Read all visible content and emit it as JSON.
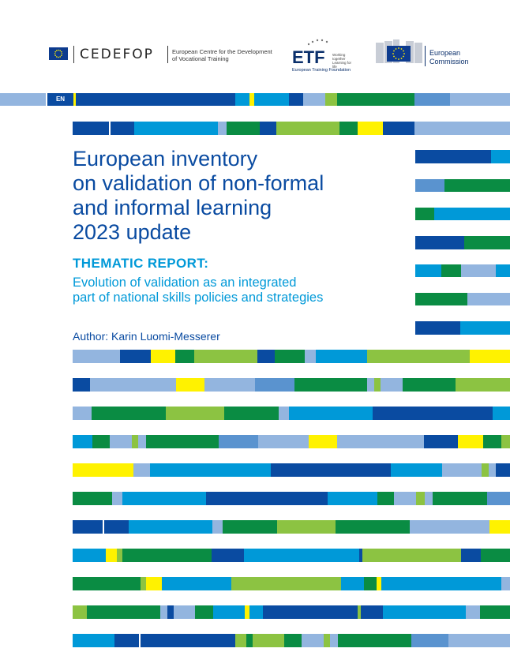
{
  "header": {
    "cedefop_name": "CEDEFOP",
    "cedefop_desc_line1": "European Centre for the Development",
    "cedefop_desc_line2": "of Vocational Training",
    "etf_name": "ETF",
    "etf_tagline_line1": "Working together",
    "etf_tagline_line2": "Learning for life",
    "etf_full": "European Training Foundation",
    "ec_line1": "European",
    "ec_line2": "Commission",
    "flag_icon": "eu-flag-icon"
  },
  "language_badge": "EN",
  "title_lines": [
    "European inventory",
    "on validation of non-formal",
    "and informal learning",
    "2023 update"
  ],
  "thematic_label": "THEMATIC REPORT:",
  "subtitle_lines": [
    "Evolution of validation as an integrated",
    "part of national skills policies and strategies"
  ],
  "author": "Author: Karin Luomi-Messerer",
  "colors": {
    "dark_blue": "#0a4ba1",
    "cyan": "#0099d8",
    "light_blue": "#93b5df",
    "mid_blue": "#5a93cf",
    "green": "#0a8c43",
    "lime": "#8cc342",
    "yellow": "#fff200",
    "title": "#0a4ba1",
    "subtitle": "#0099d8"
  }
}
